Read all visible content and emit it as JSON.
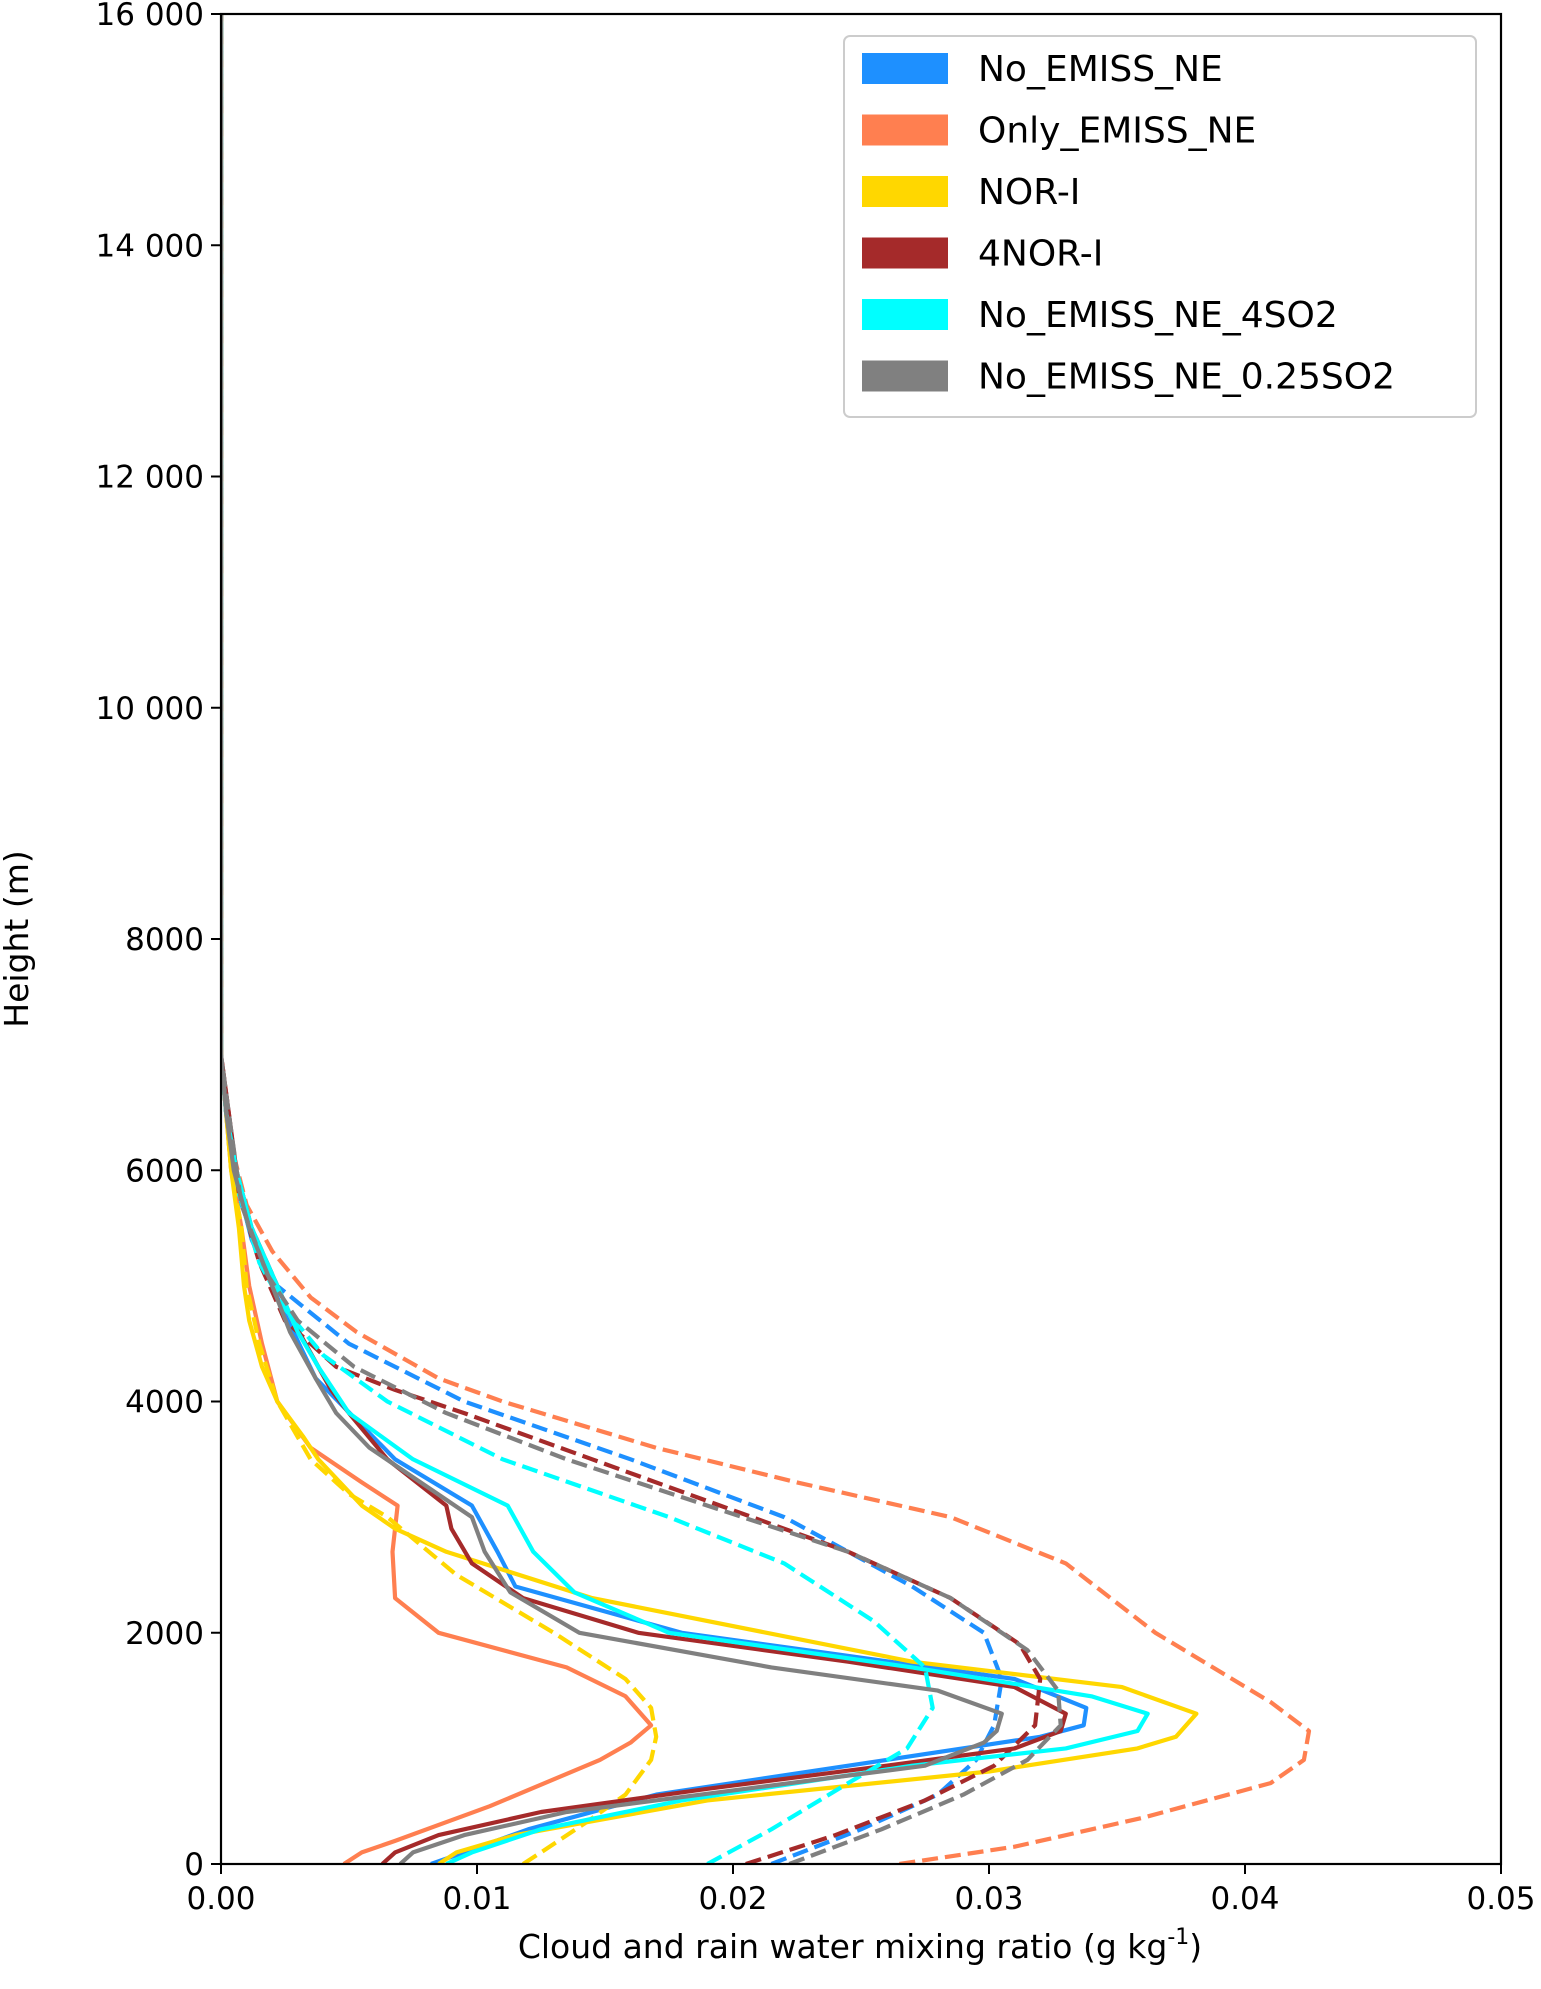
{
  "chart_data": {
    "type": "line",
    "title": "",
    "xlabel": "Cloud and rain water mixing ratio (g kg",
    "xlabel_superscript": "-1",
    "xlabel_suffix": ")",
    "ylabel": "Height (m)",
    "xlim": [
      0.0,
      0.05
    ],
    "ylim": [
      0,
      16000
    ],
    "xticks": [
      0.0,
      0.01,
      0.02,
      0.03,
      0.04,
      0.05
    ],
    "xtick_labels": [
      "0.00",
      "0.01",
      "0.02",
      "0.03",
      "0.04",
      "0.05"
    ],
    "yticks": [
      0,
      2000,
      4000,
      6000,
      8000,
      10000,
      12000,
      14000,
      16000
    ],
    "ytick_labels": [
      "0",
      "2000",
      "4000",
      "6000",
      "8000",
      "10 000",
      "12 000",
      "14 000",
      "16 000"
    ],
    "grid": false,
    "legend_position": "top-right",
    "line_styles": {
      "solid": "solid",
      "dashed": "dashed"
    },
    "series": [
      {
        "name": "No_EMISS_NE",
        "color": "#1E90FF",
        "solid": [
          [
            0.0082,
            0
          ],
          [
            0.0095,
            100
          ],
          [
            0.012,
            300
          ],
          [
            0.017,
            600
          ],
          [
            0.026,
            900
          ],
          [
            0.032,
            1100
          ],
          [
            0.0337,
            1200
          ],
          [
            0.0338,
            1350
          ],
          [
            0.031,
            1600
          ],
          [
            0.018,
            2000
          ],
          [
            0.0115,
            2400
          ],
          [
            0.0108,
            2700
          ],
          [
            0.0098,
            3100
          ],
          [
            0.0068,
            3500
          ],
          [
            0.0037,
            4200
          ],
          [
            0.0024,
            4800
          ],
          [
            0.0012,
            5400
          ],
          [
            0.0005,
            6000
          ],
          [
            0.0002,
            6500
          ],
          [
            0,
            7000
          ],
          [
            0,
            16000
          ]
        ],
        "dashed": [
          [
            0.0215,
            0
          ],
          [
            0.025,
            300
          ],
          [
            0.028,
            600
          ],
          [
            0.0295,
            900
          ],
          [
            0.0302,
            1200
          ],
          [
            0.0305,
            1600
          ],
          [
            0.0298,
            2000
          ],
          [
            0.027,
            2400
          ],
          [
            0.022,
            3000
          ],
          [
            0.016,
            3500
          ],
          [
            0.0095,
            4000
          ],
          [
            0.005,
            4500
          ],
          [
            0.0022,
            5000
          ],
          [
            0.0008,
            5700
          ],
          [
            0.0002,
            6500
          ],
          [
            0,
            7000
          ],
          [
            0,
            16000
          ]
        ]
      },
      {
        "name": "Only_EMISS_NE",
        "color": "#FF7F50",
        "solid": [
          [
            0.0048,
            0
          ],
          [
            0.0055,
            100
          ],
          [
            0.0068,
            200
          ],
          [
            0.0105,
            500
          ],
          [
            0.0148,
            900
          ],
          [
            0.016,
            1050
          ],
          [
            0.0168,
            1200
          ],
          [
            0.0158,
            1450
          ],
          [
            0.0135,
            1700
          ],
          [
            0.0085,
            2000
          ],
          [
            0.0068,
            2300
          ],
          [
            0.0067,
            2700
          ],
          [
            0.0069,
            3100
          ],
          [
            0.0055,
            3300
          ],
          [
            0.0035,
            3600
          ],
          [
            0.0022,
            4000
          ],
          [
            0.0016,
            4500
          ],
          [
            0.0011,
            5000
          ],
          [
            0.0008,
            5500
          ],
          [
            0.0004,
            6000
          ],
          [
            0.0002,
            6500
          ],
          [
            0,
            7000
          ],
          [
            0,
            16000
          ]
        ],
        "dashed": [
          [
            0.0265,
            0
          ],
          [
            0.031,
            150
          ],
          [
            0.036,
            400
          ],
          [
            0.041,
            700
          ],
          [
            0.0423,
            900
          ],
          [
            0.0425,
            1150
          ],
          [
            0.041,
            1400
          ],
          [
            0.0395,
            1600
          ],
          [
            0.0365,
            2000
          ],
          [
            0.033,
            2600
          ],
          [
            0.0285,
            3000
          ],
          [
            0.0225,
            3300
          ],
          [
            0.017,
            3600
          ],
          [
            0.011,
            4000
          ],
          [
            0.0085,
            4200
          ],
          [
            0.0053,
            4600
          ],
          [
            0.0035,
            4900
          ],
          [
            0.002,
            5300
          ],
          [
            0.001,
            5700
          ],
          [
            0.0003,
            6300
          ],
          [
            0,
            7000
          ],
          [
            0,
            16000
          ]
        ]
      },
      {
        "name": "NOR-I",
        "color": "#FFD700",
        "solid": [
          [
            0.0085,
            0
          ],
          [
            0.0092,
            100
          ],
          [
            0.0115,
            250
          ],
          [
            0.019,
            550
          ],
          [
            0.03,
            800
          ],
          [
            0.0358,
            1000
          ],
          [
            0.0373,
            1100
          ],
          [
            0.0381,
            1300
          ],
          [
            0.0352,
            1530
          ],
          [
            0.027,
            1750
          ],
          [
            0.0145,
            2300
          ],
          [
            0.0088,
            2700
          ],
          [
            0.0068,
            2900
          ],
          [
            0.0055,
            3100
          ],
          [
            0.0038,
            3500
          ],
          [
            0.0032,
            3700
          ],
          [
            0.0022,
            4000
          ],
          [
            0.0016,
            4300
          ],
          [
            0.0011,
            4700
          ],
          [
            0.0009,
            5000
          ],
          [
            0.0007,
            5500
          ],
          [
            0.0004,
            6000
          ],
          [
            0.0002,
            6500
          ],
          [
            0,
            7000
          ],
          [
            0,
            16000
          ]
        ],
        "dashed": [
          [
            0.0118,
            0
          ],
          [
            0.0125,
            100
          ],
          [
            0.0142,
            350
          ],
          [
            0.0158,
            600
          ],
          [
            0.0168,
            900
          ],
          [
            0.017,
            1100
          ],
          [
            0.0168,
            1350
          ],
          [
            0.0158,
            1600
          ],
          [
            0.013,
            2000
          ],
          [
            0.0092,
            2500
          ],
          [
            0.0065,
            3000
          ],
          [
            0.005,
            3200
          ],
          [
            0.0035,
            3500
          ],
          [
            0.0022,
            4000
          ],
          [
            0.0015,
            4500
          ],
          [
            0.001,
            5000
          ],
          [
            0.0008,
            5500
          ],
          [
            0.0004,
            6000
          ],
          [
            0,
            7000
          ],
          [
            0,
            16000
          ]
        ]
      },
      {
        "name": "4NOR-I",
        "color": "#A52A2A",
        "solid": [
          [
            0.0063,
            0
          ],
          [
            0.0068,
            100
          ],
          [
            0.0085,
            250
          ],
          [
            0.0125,
            450
          ],
          [
            0.019,
            650
          ],
          [
            0.026,
            850
          ],
          [
            0.031,
            1000
          ],
          [
            0.0328,
            1150
          ],
          [
            0.033,
            1300
          ],
          [
            0.031,
            1530
          ],
          [
            0.0245,
            1750
          ],
          [
            0.0163,
            2000
          ],
          [
            0.0118,
            2300
          ],
          [
            0.0098,
            2600
          ],
          [
            0.009,
            2900
          ],
          [
            0.0088,
            3100
          ],
          [
            0.0065,
            3500
          ],
          [
            0.005,
            3900
          ],
          [
            0.0043,
            4100
          ],
          [
            0.0038,
            4300
          ],
          [
            0.0028,
            4700
          ],
          [
            0.0022,
            5000
          ],
          [
            0.0012,
            5500
          ],
          [
            0.0006,
            6000
          ],
          [
            0.0003,
            6500
          ],
          [
            0,
            7000
          ],
          [
            0,
            16000
          ]
        ],
        "dashed": [
          [
            0.0205,
            0
          ],
          [
            0.024,
            250
          ],
          [
            0.0275,
            550
          ],
          [
            0.0302,
            850
          ],
          [
            0.0318,
            1200
          ],
          [
            0.032,
            1600
          ],
          [
            0.0312,
            1900
          ],
          [
            0.0285,
            2300
          ],
          [
            0.0245,
            2700
          ],
          [
            0.0195,
            3100
          ],
          [
            0.0145,
            3500
          ],
          [
            0.0095,
            3900
          ],
          [
            0.0068,
            4100
          ],
          [
            0.0045,
            4300
          ],
          [
            0.0025,
            4700
          ],
          [
            0.0015,
            5200
          ],
          [
            0.0007,
            5800
          ],
          [
            0.0003,
            6500
          ],
          [
            0,
            7000
          ],
          [
            0,
            16000
          ]
        ]
      },
      {
        "name": "No_EMISS_NE_4SO2",
        "color": "#00FFFF",
        "solid": [
          [
            0.0088,
            0
          ],
          [
            0.0098,
            100
          ],
          [
            0.0125,
            300
          ],
          [
            0.018,
            550
          ],
          [
            0.027,
            850
          ],
          [
            0.033,
            1000
          ],
          [
            0.0358,
            1150
          ],
          [
            0.0362,
            1300
          ],
          [
            0.034,
            1450
          ],
          [
            0.027,
            1700
          ],
          [
            0.0175,
            2000
          ],
          [
            0.0138,
            2350
          ],
          [
            0.0122,
            2700
          ],
          [
            0.0112,
            3100
          ],
          [
            0.0075,
            3500
          ],
          [
            0.005,
            3900
          ],
          [
            0.0038,
            4300
          ],
          [
            0.003,
            4600
          ],
          [
            0.0022,
            5000
          ],
          [
            0.0012,
            5500
          ],
          [
            0.0006,
            6000
          ],
          [
            0.0002,
            6500
          ],
          [
            0,
            7000
          ],
          [
            0,
            16000
          ]
        ],
        "dashed": [
          [
            0.019,
            0
          ],
          [
            0.0215,
            300
          ],
          [
            0.0245,
            700
          ],
          [
            0.0268,
            1000
          ],
          [
            0.0278,
            1350
          ],
          [
            0.0275,
            1700
          ],
          [
            0.0255,
            2100
          ],
          [
            0.022,
            2600
          ],
          [
            0.0175,
            3000
          ],
          [
            0.011,
            3500
          ],
          [
            0.0065,
            4000
          ],
          [
            0.004,
            4400
          ],
          [
            0.0025,
            4800
          ],
          [
            0.0015,
            5200
          ],
          [
            0.0007,
            5800
          ],
          [
            0.0002,
            6500
          ],
          [
            0,
            7000
          ],
          [
            0,
            16000
          ]
        ]
      },
      {
        "name": "No_EMISS_NE_0.25SO2",
        "color": "#808080",
        "solid": [
          [
            0.007,
            0
          ],
          [
            0.0075,
            100
          ],
          [
            0.0095,
            250
          ],
          [
            0.0135,
            450
          ],
          [
            0.0205,
            650
          ],
          [
            0.0275,
            850
          ],
          [
            0.0298,
            1050
          ],
          [
            0.0303,
            1150
          ],
          [
            0.0305,
            1300
          ],
          [
            0.028,
            1500
          ],
          [
            0.0215,
            1700
          ],
          [
            0.014,
            2000
          ],
          [
            0.0113,
            2350
          ],
          [
            0.0103,
            2700
          ],
          [
            0.0098,
            3000
          ],
          [
            0.0058,
            3600
          ],
          [
            0.0045,
            3900
          ],
          [
            0.0037,
            4200
          ],
          [
            0.0027,
            4600
          ],
          [
            0.002,
            5000
          ],
          [
            0.0011,
            5500
          ],
          [
            0.0005,
            6000
          ],
          [
            0.0002,
            6500
          ],
          [
            0,
            7000
          ],
          [
            0,
            16000
          ]
        ],
        "dashed": [
          [
            0.0222,
            0
          ],
          [
            0.0258,
            300
          ],
          [
            0.029,
            600
          ],
          [
            0.0315,
            900
          ],
          [
            0.0328,
            1200
          ],
          [
            0.0327,
            1500
          ],
          [
            0.0315,
            1850
          ],
          [
            0.0285,
            2300
          ],
          [
            0.0245,
            2700
          ],
          [
            0.019,
            3100
          ],
          [
            0.0135,
            3500
          ],
          [
            0.0088,
            3900
          ],
          [
            0.0052,
            4300
          ],
          [
            0.003,
            4700
          ],
          [
            0.0018,
            5100
          ],
          [
            0.0008,
            5700
          ],
          [
            0.0003,
            6500
          ],
          [
            0,
            7000
          ],
          [
            0,
            16000
          ]
        ]
      }
    ]
  }
}
